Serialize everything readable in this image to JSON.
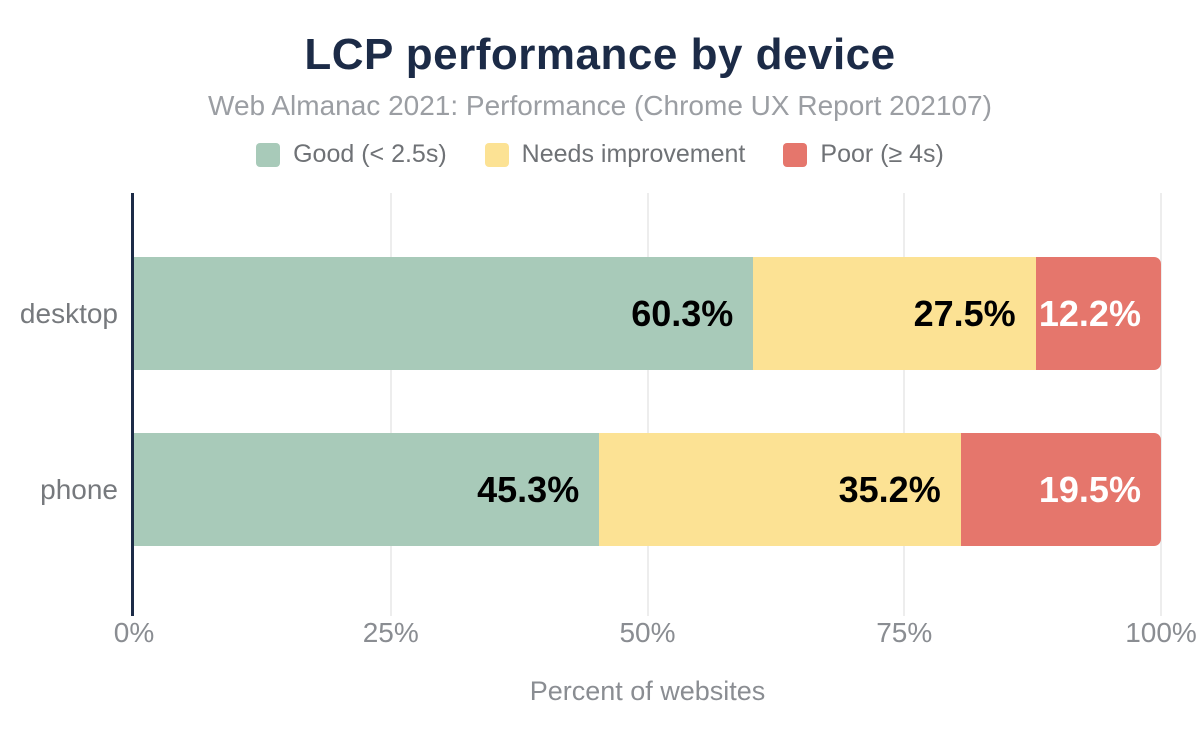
{
  "title": "LCP performance by device",
  "subtitle": "Web Almanac 2021: Performance (Chrome UX Report 202107)",
  "legend": [
    {
      "label": "Good (< 2.5s)",
      "color": "#a8cab9"
    },
    {
      "label": "Needs improvement",
      "color": "#fce294"
    },
    {
      "label": "Poor (≥ 4s)",
      "color": "#e5766c"
    }
  ],
  "chart_data": {
    "type": "bar",
    "orientation": "horizontal",
    "stacked": true,
    "title": "LCP performance by device",
    "subtitle": "Web Almanac 2021: Performance (Chrome UX Report 202107)",
    "categories": [
      "desktop",
      "phone"
    ],
    "series": [
      {
        "name": "Good (< 2.5s)",
        "color": "#a8cab9",
        "label_color": "#000000",
        "values": [
          60.3,
          45.3
        ]
      },
      {
        "name": "Needs improvement",
        "color": "#fce294",
        "label_color": "#000000",
        "values": [
          27.5,
          35.2
        ]
      },
      {
        "name": "Poor (≥ 4s)",
        "color": "#e5766c",
        "label_color": "#ffffff",
        "values": [
          12.2,
          19.5
        ]
      }
    ],
    "xlabel": "Percent of websites",
    "ylabel": "",
    "xlim": [
      0,
      100
    ],
    "x_tick_values": [
      0,
      25,
      50,
      75,
      100
    ],
    "x_ticks": [
      "0%",
      "25%",
      "50%",
      "75%",
      "100%"
    ],
    "value_suffix": "%",
    "grid": true,
    "legend_position": "top"
  },
  "colors": {
    "title": "#1c2b47",
    "axis": "#1c2b47",
    "subtitle": "#9b9ea3",
    "legend_text": "#6f7276",
    "tick_text": "#8a8d92",
    "category_text": "#76797d",
    "gridline": "#ededed",
    "background": "#ffffff"
  }
}
